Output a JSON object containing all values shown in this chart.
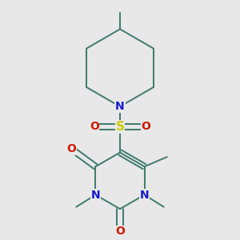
{
  "background_color": "#e8e8e8",
  "bond_color": "#3d7a6a",
  "bond_width": 1.4,
  "atom_colors": {
    "N": "#1818cc",
    "O": "#cc1800",
    "S": "#cccc00"
  },
  "figsize": [
    3.0,
    3.0
  ],
  "dpi": 100
}
